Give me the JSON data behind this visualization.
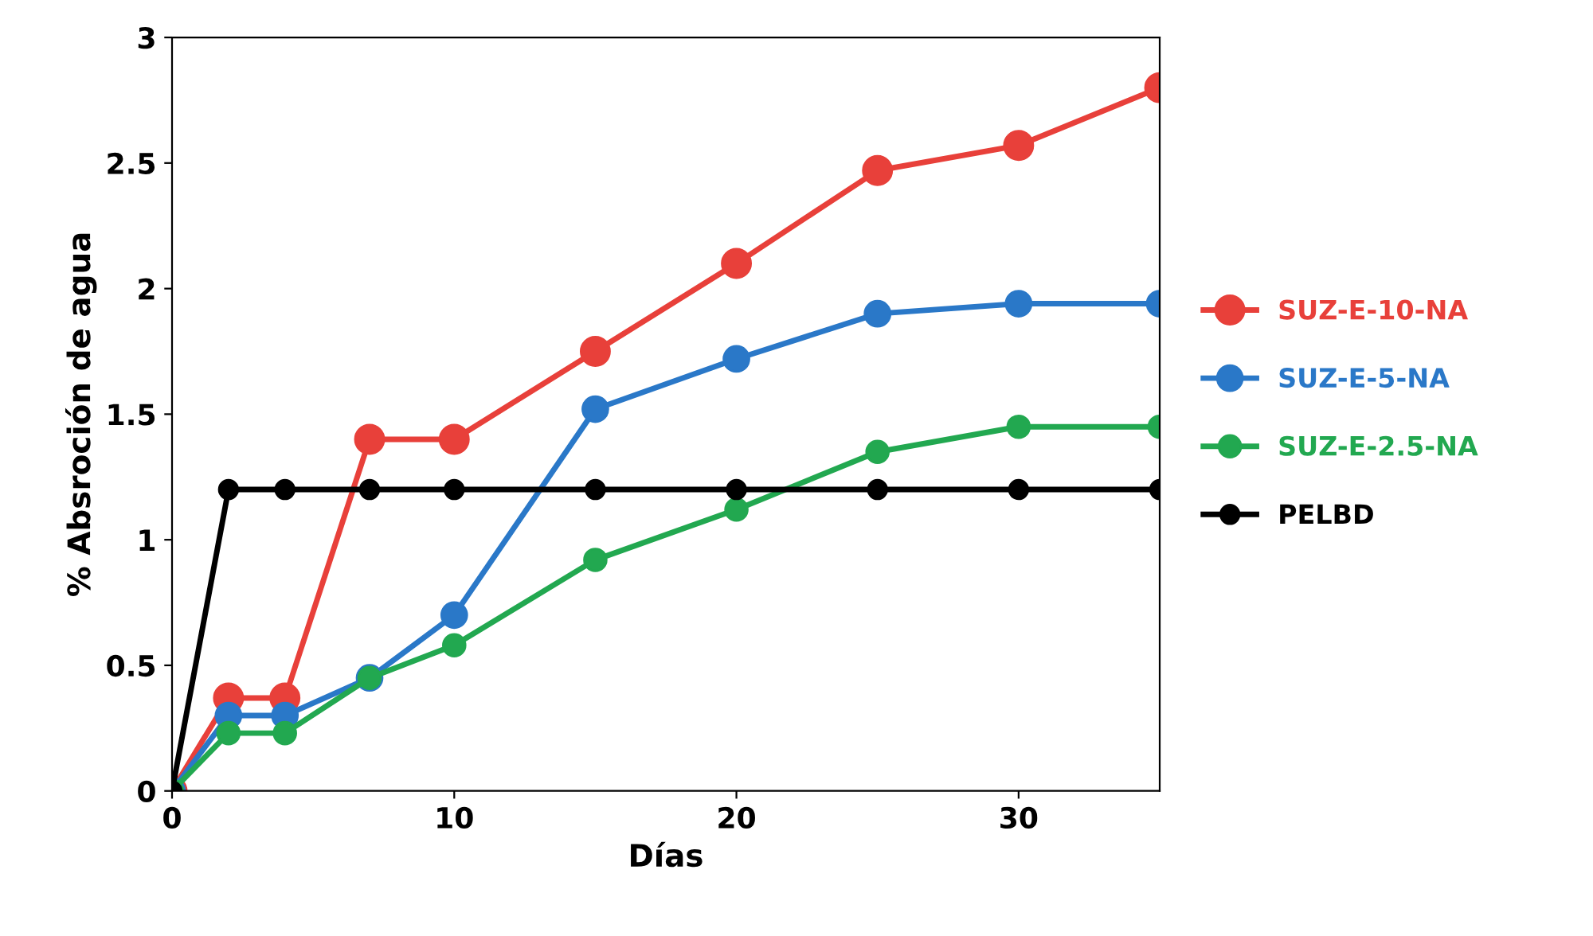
{
  "chart_data": {
    "type": "line",
    "xlabel": "Días",
    "ylabel": "% Absroción de agua",
    "xlim": [
      0,
      35
    ],
    "xticks": [
      0,
      10,
      20,
      30
    ],
    "ylim": [
      0,
      3
    ],
    "yticks": [
      0,
      0.5,
      1,
      1.5,
      2,
      2.5,
      3
    ],
    "grid": false,
    "legend": "right",
    "marker": "circle",
    "line_style": "solid",
    "series": [
      {
        "name": "SUZ-E-10-NA",
        "color": "#e8403a",
        "x": [
          0,
          2,
          4,
          7,
          10,
          15,
          20,
          25,
          30,
          35
        ],
        "values": [
          0,
          0.37,
          0.37,
          1.4,
          1.4,
          1.75,
          2.1,
          2.47,
          2.57,
          2.8
        ]
      },
      {
        "name": "SUZ-E-5-NA",
        "color": "#2a78c8",
        "x": [
          0,
          2,
          4,
          7,
          10,
          15,
          20,
          25,
          30,
          35
        ],
        "values": [
          0,
          0.3,
          0.3,
          0.45,
          0.7,
          1.52,
          1.72,
          1.9,
          1.94,
          1.94
        ]
      },
      {
        "name": "SUZ-E-2.5-NA",
        "color": "#22a850",
        "x": [
          0,
          2,
          4,
          7,
          10,
          15,
          20,
          25,
          30,
          35
        ],
        "values": [
          0,
          0.23,
          0.23,
          0.45,
          0.58,
          0.92,
          1.12,
          1.35,
          1.45,
          1.45
        ]
      },
      {
        "name": "PELBD",
        "color": "#000000",
        "x": [
          0,
          2,
          4,
          7,
          10,
          15,
          20,
          25,
          30,
          35
        ],
        "values": [
          0,
          1.2,
          1.2,
          1.2,
          1.2,
          1.2,
          1.2,
          1.2,
          1.2,
          1.2
        ]
      }
    ]
  }
}
